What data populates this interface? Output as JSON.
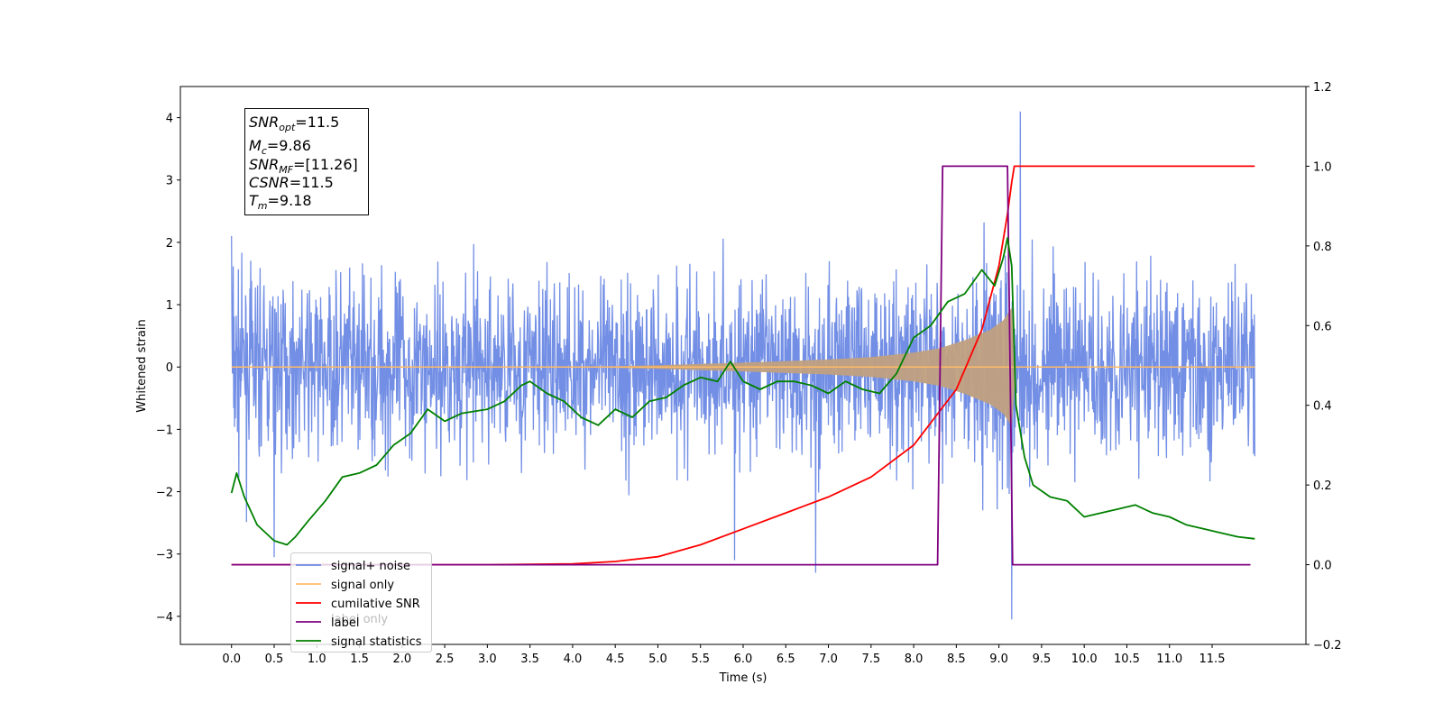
{
  "chart_data": {
    "type": "line",
    "xlabel": "Time (s)",
    "ylabel": "Whitened strain",
    "xlim": [
      -0.6,
      12.6
    ],
    "ylim": [
      -4.45,
      4.5
    ],
    "y2lim": [
      -0.2,
      1.2
    ],
    "x_ticks": [
      "0.0",
      "0.5",
      "1.0",
      "1.5",
      "2.0",
      "2.5",
      "3.0",
      "3.5",
      "4.0",
      "4.5",
      "5.0",
      "5.5",
      "6.0",
      "6.5",
      "7.0",
      "7.5",
      "8.0",
      "8.5",
      "9.0",
      "9.5",
      "10.0",
      "10.5",
      "11.0",
      "11.5"
    ],
    "y_ticks": [
      "4",
      "3",
      "2",
      "1",
      "0",
      "−1",
      "−2",
      "−3",
      "−4"
    ],
    "y2_ticks": [
      "1.2",
      "1.0",
      "0.8",
      "0.6",
      "0.4",
      "0.2",
      "0.0",
      "−0.2"
    ],
    "annotation": {
      "snr_opt": {
        "base": "SNR",
        "sub": "opt",
        "value": "=11.5"
      },
      "mc": {
        "base": "M",
        "sub": "c",
        "value": "=9.86"
      },
      "snr_mf": {
        "base": "SNR",
        "sub": "MF",
        "value": "=[11.26]"
      },
      "csnr": {
        "base": "CSNR",
        "value": "=11.5"
      },
      "tm": {
        "base": "T",
        "sub": "m",
        "value": "=9.18"
      }
    },
    "series": [
      {
        "name": "signal+ noise",
        "color": "#6b89e4",
        "axis": "left",
        "description_envelope": {
          "x": [
            0.0,
            12.0
          ],
          "upper_typical": 1.6,
          "lower_typical": -1.6,
          "extremes": [
            [
              0.0,
              2.1
            ],
            [
              0.5,
              -3.05
            ],
            [
              5.9,
              -3.1
            ],
            [
              6.85,
              -3.3
            ],
            [
              9.25,
              4.1
            ],
            [
              9.15,
              -4.05
            ]
          ]
        }
      },
      {
        "name": "signal only",
        "color": "#ffbb66",
        "axis": "left",
        "envelope": {
          "x": [
            0.0,
            4.0,
            5.0,
            6.0,
            7.0,
            7.5,
            8.0,
            8.3,
            8.6,
            8.9,
            9.05,
            9.15,
            9.2,
            12.0
          ],
          "amp": [
            0.0,
            0.0,
            0.03,
            0.07,
            0.12,
            0.16,
            0.23,
            0.3,
            0.43,
            0.6,
            0.75,
            0.95,
            0.0,
            0.0
          ]
        }
      },
      {
        "name": "cumilative SNR",
        "color": "#ff0000",
        "axis": "right",
        "x": [
          0.0,
          3.0,
          4.0,
          4.5,
          5.0,
          5.5,
          6.0,
          6.5,
          7.0,
          7.5,
          8.0,
          8.5,
          8.8,
          9.0,
          9.1,
          9.15,
          9.18,
          12.0
        ],
        "y": [
          0.0,
          0.0,
          0.002,
          0.008,
          0.02,
          0.05,
          0.09,
          0.13,
          0.17,
          0.22,
          0.3,
          0.44,
          0.59,
          0.75,
          0.88,
          0.96,
          1.0,
          1.0
        ]
      },
      {
        "name": "label",
        "color": "#800080",
        "axis": "right",
        "x": [
          0.0,
          8.28,
          8.34,
          9.1,
          9.16,
          11.95
        ],
        "y": [
          0.0,
          0.0,
          1.0,
          1.0,
          0.0,
          0.0
        ]
      },
      {
        "name": "signal statistics",
        "color": "#008000",
        "axis": "right",
        "x": [
          0.0,
          0.06,
          0.15,
          0.3,
          0.5,
          0.65,
          0.75,
          0.9,
          1.1,
          1.3,
          1.5,
          1.7,
          1.9,
          2.1,
          2.3,
          2.5,
          2.7,
          3.0,
          3.2,
          3.4,
          3.5,
          3.7,
          3.9,
          4.1,
          4.3,
          4.5,
          4.7,
          4.9,
          5.1,
          5.3,
          5.5,
          5.7,
          5.85,
          6.0,
          6.2,
          6.4,
          6.6,
          6.8,
          7.0,
          7.2,
          7.4,
          7.6,
          7.8,
          8.0,
          8.2,
          8.4,
          8.6,
          8.8,
          8.95,
          9.05,
          9.1,
          9.15,
          9.2,
          9.3,
          9.4,
          9.6,
          9.8,
          10.0,
          10.2,
          10.4,
          10.6,
          10.8,
          11.0,
          11.2,
          11.4,
          11.6,
          11.8,
          12.0
        ],
        "y": [
          0.18,
          0.23,
          0.17,
          0.1,
          0.06,
          0.05,
          0.07,
          0.11,
          0.16,
          0.22,
          0.23,
          0.25,
          0.3,
          0.33,
          0.39,
          0.36,
          0.38,
          0.39,
          0.41,
          0.45,
          0.46,
          0.43,
          0.41,
          0.37,
          0.35,
          0.39,
          0.37,
          0.41,
          0.42,
          0.45,
          0.47,
          0.46,
          0.51,
          0.46,
          0.44,
          0.46,
          0.46,
          0.45,
          0.43,
          0.46,
          0.44,
          0.43,
          0.48,
          0.57,
          0.6,
          0.66,
          0.68,
          0.74,
          0.7,
          0.77,
          0.82,
          0.75,
          0.4,
          0.27,
          0.2,
          0.17,
          0.16,
          0.12,
          0.13,
          0.14,
          0.15,
          0.13,
          0.12,
          0.1,
          0.09,
          0.08,
          0.07,
          0.065
        ]
      }
    ],
    "legend": {
      "placement": "lower-left",
      "entries": [
        "signal+ noise",
        "signal only",
        "cumilative SNR",
        "label",
        "signal statistics"
      ],
      "ghost_text": "label only"
    }
  }
}
